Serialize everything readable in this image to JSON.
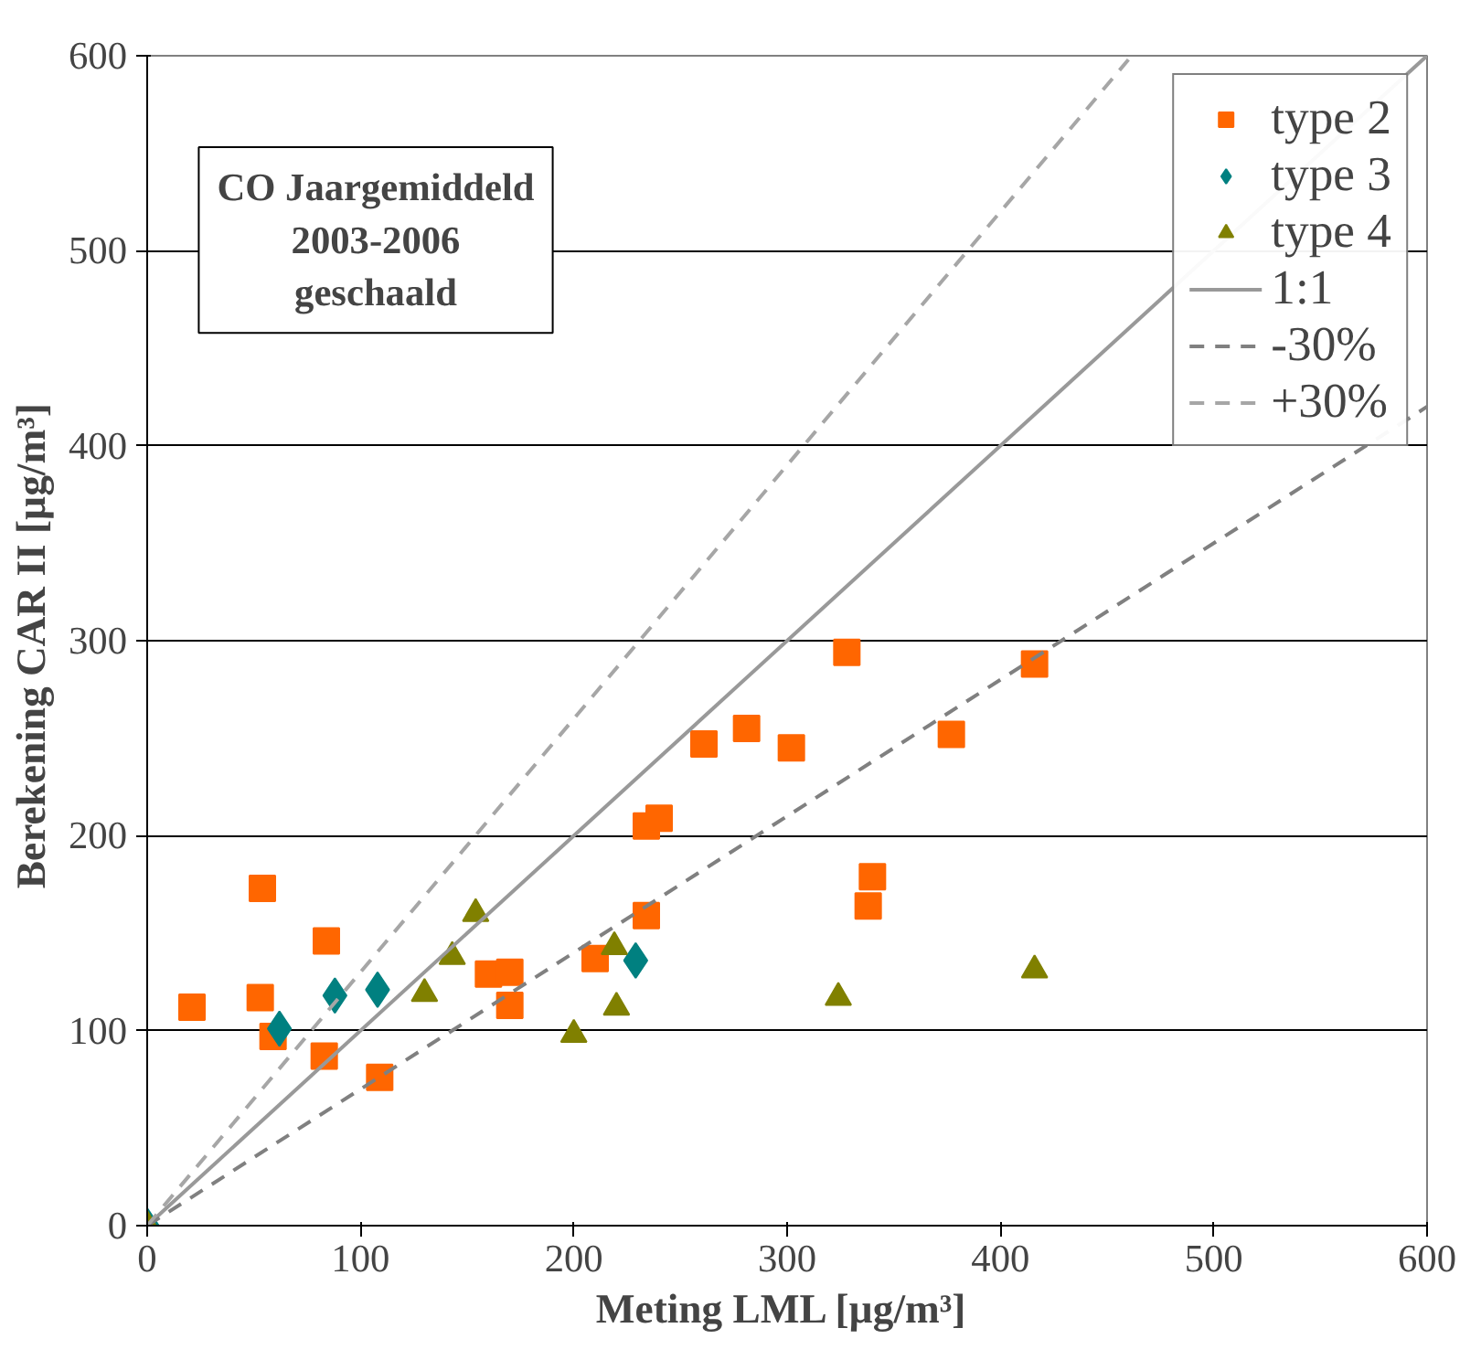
{
  "chart_data": {
    "type": "scatter",
    "title": "CO Jaargemiddeld\n2003-2006\ngeschaald",
    "xlabel": "Meting LML  [µg/m³]",
    "ylabel": "Berekening CAR II  [µg/m³]",
    "xlim": [
      0,
      600
    ],
    "ylim": [
      0,
      600
    ],
    "xticks": [
      0,
      100,
      200,
      300,
      400,
      500,
      600
    ],
    "yticks": [
      0,
      100,
      200,
      300,
      400,
      500,
      600
    ],
    "grid": "y",
    "legend": "top right",
    "series": [
      {
        "name": "type 2",
        "marker": "square",
        "color": "#ff6600",
        "x": [
          21,
          54,
          53,
          59,
          84,
          83,
          109,
          160,
          170,
          170,
          210,
          234,
          240,
          234,
          261,
          281,
          302,
          328,
          340,
          338,
          377,
          416
        ],
        "values": [
          112,
          173,
          117,
          97,
          146,
          87,
          76,
          129,
          130,
          113,
          137,
          205,
          209,
          159,
          247,
          255,
          245,
          294,
          179,
          164,
          252,
          288
        ]
      },
      {
        "name": "type 3",
        "marker": "diamond",
        "color": "#008080",
        "x": [
          0,
          62,
          88,
          108,
          229
        ],
        "values": [
          0,
          101,
          118,
          121,
          136
        ]
      },
      {
        "name": "type 4",
        "marker": "triangle",
        "color": "#808000",
        "x": [
          0,
          130,
          143,
          154,
          200,
          219,
          220,
          324,
          416
        ],
        "values": [
          0,
          119,
          138,
          160,
          98,
          143,
          112,
          117,
          131
        ]
      },
      {
        "name": "1:1",
        "type": "line",
        "line_style": "solid",
        "color": "#999999",
        "x": [
          0,
          600
        ],
        "values": [
          0,
          600
        ]
      },
      {
        "name": "-30%",
        "type": "line",
        "line_style": "dashed",
        "color": "#808080",
        "x": [
          0,
          600
        ],
        "values": [
          0,
          420
        ]
      },
      {
        "name": "+30%",
        "type": "line",
        "line_style": "dashed",
        "color": "#a6a6a6",
        "x": [
          0,
          460
        ],
        "values": [
          0,
          598
        ]
      }
    ]
  }
}
